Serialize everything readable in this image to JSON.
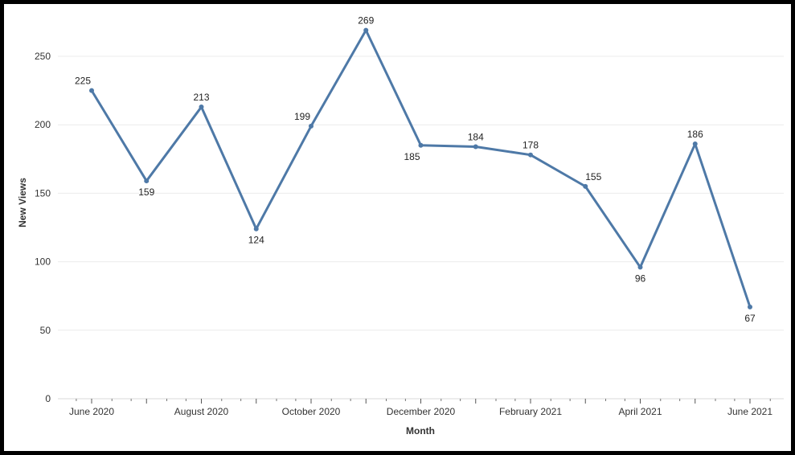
{
  "chart_data": {
    "type": "line",
    "title": "",
    "xlabel": "Month",
    "ylabel": "New Views",
    "ylim": [
      0,
      275
    ],
    "y_ticks": [
      0,
      50,
      100,
      150,
      200,
      250
    ],
    "grid": "horizontal",
    "x": [
      "June 2020",
      "July 2020",
      "August 2020",
      "September 2020",
      "October 2020",
      "November 2020",
      "December 2020",
      "January 2021",
      "February 2021",
      "March 2021",
      "April 2021",
      "May 2021",
      "June 2021"
    ],
    "x_tick_labels": [
      "June 2020",
      "August 2020",
      "October 2020",
      "December 2020",
      "February 2021",
      "April 2021",
      "June 2021"
    ],
    "series": [
      {
        "values": [
          225,
          159,
          213,
          124,
          199,
          269,
          185,
          184,
          178,
          155,
          96,
          186,
          67
        ],
        "data_labels": [
          "225",
          "159",
          "213",
          "124",
          "199",
          "269",
          "185",
          "184",
          "178",
          "155",
          "96",
          "186",
          "67"
        ],
        "color": "#4e79a7"
      }
    ]
  }
}
